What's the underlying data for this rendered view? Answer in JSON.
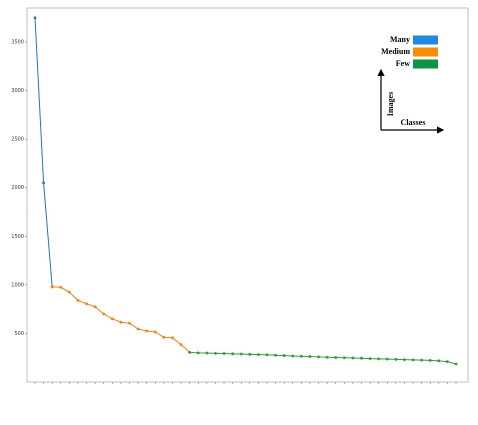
{
  "chart_data": {
    "type": "line",
    "categories": [
      null,
      null,
      null,
      null,
      null,
      null,
      null,
      null,
      null,
      null,
      null,
      null,
      null,
      null,
      null,
      null,
      null,
      null,
      null,
      null,
      null,
      null,
      null,
      null,
      null,
      null,
      null,
      null,
      null,
      null,
      null,
      null,
      null,
      null,
      null,
      null,
      null,
      null,
      null,
      null,
      null,
      null,
      null,
      null,
      null,
      null,
      null,
      null,
      null,
      null
    ],
    "series": [
      {
        "name": "Many",
        "color": "#1f77b4",
        "values": [
          3750,
          2050,
          980,
          null,
          null,
          null,
          null,
          null,
          null,
          null,
          null,
          null,
          null,
          null,
          null,
          null,
          null,
          null,
          null,
          null,
          null,
          null,
          null,
          null,
          null,
          null,
          null,
          null,
          null,
          null,
          null,
          null,
          null,
          null,
          null,
          null,
          null,
          null,
          null,
          null,
          null,
          null,
          null,
          null,
          null,
          null,
          null,
          null,
          null,
          null
        ]
      },
      {
        "name": "Medium",
        "color": "#ff7f0e",
        "values": [
          null,
          null,
          980,
          975,
          925,
          840,
          805,
          775,
          700,
          650,
          615,
          605,
          545,
          525,
          515,
          460,
          455,
          385,
          305,
          null,
          null,
          null,
          null,
          null,
          null,
          null,
          null,
          null,
          null,
          null,
          null,
          null,
          null,
          null,
          null,
          null,
          null,
          null,
          null,
          null,
          null,
          null,
          null,
          null,
          null,
          null,
          null,
          null,
          null,
          null
        ]
      },
      {
        "name": "Few",
        "color": "#2ca02c",
        "values": [
          null,
          null,
          null,
          null,
          null,
          null,
          null,
          null,
          null,
          null,
          null,
          null,
          null,
          null,
          null,
          null,
          null,
          null,
          305,
          300,
          298,
          295,
          293,
          290,
          288,
          285,
          282,
          280,
          275,
          272,
          268,
          265,
          262,
          258,
          255,
          252,
          250,
          247,
          245,
          240,
          238,
          236,
          233,
          230,
          228,
          225,
          222,
          218,
          210,
          185
        ]
      }
    ],
    "ylim": [
      0,
      3850
    ],
    "yticks": [
      500,
      1000,
      1500,
      2000,
      2500,
      3000,
      3500
    ],
    "legend": "upper right",
    "legend_colors": [
      "#1e88e5",
      "#fb8c00",
      "#0b9444"
    ],
    "annotations": {
      "y_arrow": "Images",
      "x_arrow": "Classes"
    }
  }
}
